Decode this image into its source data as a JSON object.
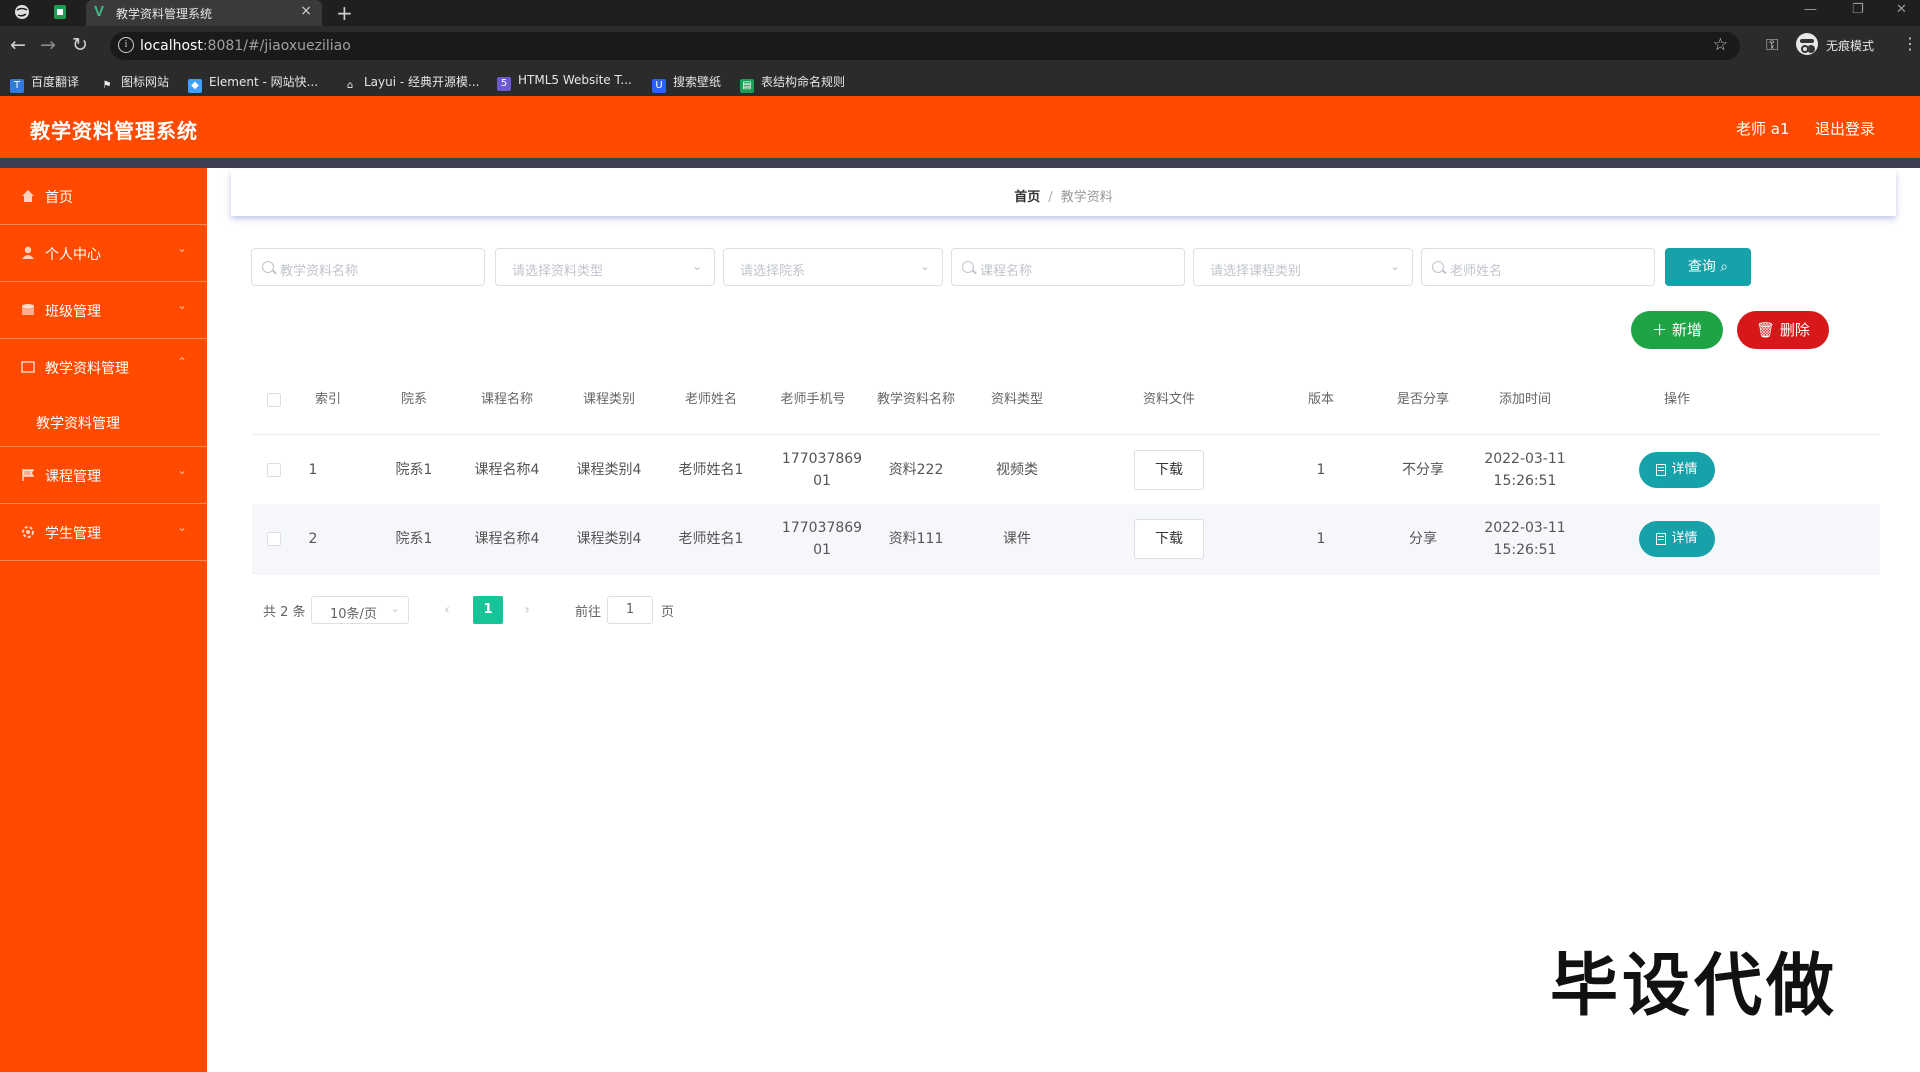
{
  "browser": {
    "tab_title": "教学资料管理系统",
    "tab_close": "×",
    "new_tab": "+",
    "url_host": "localhost",
    "url_path": ":8081/#/jiaoxueziliao",
    "incognito_label": "无痕模式",
    "bookmarks": [
      "百度翻译",
      "图标网站",
      "Element - 网站快...",
      "Layui - 经典开源模...",
      "HTML5 Website T...",
      "搜索壁纸",
      "表结构命名规则"
    ]
  },
  "header": {
    "title": "教学资料管理系统",
    "user": "老师 a1",
    "logout": "退出登录"
  },
  "sidebar": {
    "items": [
      {
        "label": "首页"
      },
      {
        "label": "个人中心"
      },
      {
        "label": "班级管理"
      },
      {
        "label": "教学资料管理"
      },
      {
        "label": "课程管理"
      },
      {
        "label": "学生管理"
      }
    ],
    "submenu": {
      "label": "教学资料管理"
    }
  },
  "breadcrumb": {
    "home": "首页",
    "separator": "/",
    "current": "教学资料"
  },
  "filters": {
    "name_placeholder": "教学资料名称",
    "type_placeholder": "请选择资料类型",
    "dept_placeholder": "请选择院系",
    "course_placeholder": "课程名称",
    "category_placeholder": "请选择课程类别",
    "teacher_placeholder": "老师姓名",
    "query_label": "查询"
  },
  "actions": {
    "add_label": "新增",
    "delete_label": "删除"
  },
  "table": {
    "headers": [
      "索引",
      "院系",
      "课程名称",
      "课程类别",
      "老师姓名",
      "老师手机号",
      "教学资料名称",
      "资料类型",
      "资料文件",
      "版本",
      "是否分享",
      "添加时间",
      "操作"
    ],
    "rows": [
      {
        "index": "1",
        "dept": "院系1",
        "course": "课程名称4",
        "category": "课程类别4",
        "teacher": "老师姓名1",
        "phone": "17703786901",
        "material": "资料222",
        "type": "视频类",
        "file": "下载",
        "version": "1",
        "share": "不分享",
        "date": "2022-03-11",
        "time": "15:26:51",
        "op": "详情"
      },
      {
        "index": "2",
        "dept": "院系1",
        "course": "课程名称4",
        "category": "课程类别4",
        "teacher": "老师姓名1",
        "phone": "17703786901",
        "material": "资料111",
        "type": "课件",
        "file": "下载",
        "version": "1",
        "share": "分享",
        "date": "2022-03-11",
        "time": "15:26:51",
        "op": "详情"
      }
    ]
  },
  "pagination": {
    "total": "共 2 条",
    "page_size": "10条/页",
    "current": "1",
    "goto": "前往",
    "goto_value": "1",
    "page_unit": "页"
  },
  "watermark": "毕设代做",
  "colors": {
    "accent": "#ff4a00",
    "teal": "#16a2a8",
    "green": "#1ea444",
    "red": "#d7181b"
  }
}
